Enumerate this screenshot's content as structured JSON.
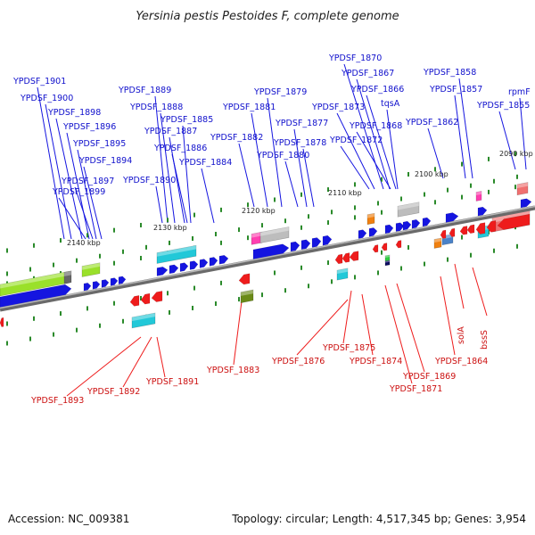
{
  "title": "Yersinia pestis Pestoides F, complete genome",
  "accession_text": "Accession: NC_009381",
  "summary_text": "Topology: circular; Length: 4,517,345 bp; Genes: 3,954",
  "colors": {
    "forward_label": "#1010cc",
    "reverse_label": "#cc1010",
    "forward_gene": "#1515e0",
    "reverse_gene": "#ee1c1c",
    "backbone": "#888888",
    "tick": "#2a8a2a",
    "cog_lime": "#9ae02a",
    "cog_cyan": "#22c8d8",
    "cog_grey": "#bdbdbd",
    "cog_pink": "#ff3fb0",
    "cog_orange": "#f08010",
    "cog_olive": "#6a8a18",
    "cog_salmon": "#f07070",
    "cog_steel": "#4a82c8"
  },
  "scale_labels": [
    "2140 kbp",
    "2130 kbp",
    "2120 kbp",
    "2110 kbp",
    "2100 kbp",
    "2090 kbp"
  ],
  "forward_genes": [
    "YPDSF_1901",
    "YPDSF_1900",
    "YPDSF_1898",
    "YPDSF_1896",
    "YPDSF_1895",
    "YPDSF_1894",
    "YPDSF_1897",
    "YPDSF_1899",
    "YPDSF_1889",
    "YPDSF_1888",
    "YPDSF_1887",
    "YPDSF_1885",
    "YPDSF_1886",
    "YPDSF_1884",
    "YPDSF_1890",
    "YPDSF_1879",
    "YPDSF_1881",
    "YPDSF_1877",
    "YPDSF_1882",
    "YPDSF_1878",
    "YPDSF_1880",
    "YPDSF_1870",
    "YPDSF_1867",
    "YPDSF_1866",
    "YPDSF_1873",
    "tqsA",
    "YPDSF_1868",
    "YPDSF_1872",
    "YPDSF_1858",
    "YPDSF_1857",
    "YPDSF_1862",
    "rpmF",
    "YPDSF_1855"
  ],
  "reverse_genes": [
    "YPDSF_1893",
    "YPDSF_1892",
    "YPDSF_1891",
    "YPDSF_1883",
    "YPDSF_1876",
    "YPDSF_1875",
    "YPDSF_1874",
    "YPDSF_1869",
    "YPDSF_1871",
    "YPDSF_1864",
    "solA",
    "bssS"
  ]
}
